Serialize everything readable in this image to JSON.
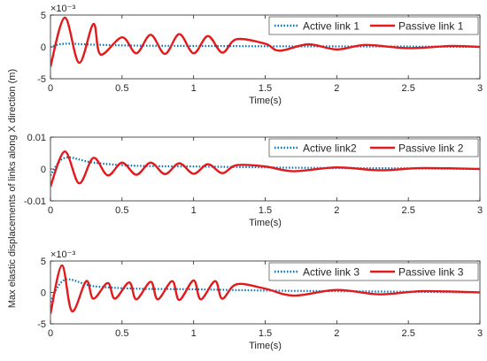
{
  "figure": {
    "shared_ylabel": "Max elastic displacements of links along X direction (m)"
  },
  "chart_data": [
    {
      "type": "line",
      "xlabel": "Time(s)",
      "ylabel": "",
      "xlim": [
        0,
        3
      ],
      "ylim": [
        -5,
        5
      ],
      "xticks": [
        0,
        0.5,
        1,
        1.5,
        2,
        2.5,
        3
      ],
      "xtick_labels": [
        "0",
        "0.5",
        "1",
        "1.5",
        "2",
        "2.5",
        "3"
      ],
      "yticks": [
        -5,
        0,
        5
      ],
      "ytick_labels": [
        "-5",
        "0",
        "5"
      ],
      "exponent_label": "×10⁻³",
      "grid": false,
      "legend_position": "top-right",
      "series": [
        {
          "name": "Active link 1",
          "color": "#0072bd",
          "style": "dotted",
          "x": [
            0,
            0.1,
            0.3,
            0.6,
            1.0,
            1.5,
            2.0,
            2.5,
            3.0
          ],
          "y": [
            0,
            0.5,
            0.35,
            0.2,
            0.15,
            0.1,
            0.08,
            0.05,
            0.0
          ]
        },
        {
          "name": "Passive link 1",
          "color": "#e31a1c",
          "style": "solid",
          "x": [
            0,
            0.1,
            0.2,
            0.3,
            0.35,
            0.5,
            0.6,
            0.7,
            0.8,
            0.9,
            1.0,
            1.1,
            1.2,
            1.3,
            1.5,
            1.6,
            1.8,
            2.0,
            2.2,
            2.5,
            2.8,
            3.0
          ],
          "y": [
            -3.1,
            4.6,
            -2.5,
            3.6,
            -1.2,
            1.5,
            -1.0,
            1.9,
            -1.1,
            2.0,
            -1.0,
            1.7,
            -0.9,
            1.2,
            0.5,
            -0.6,
            0.4,
            -0.4,
            0.3,
            -0.2,
            0.15,
            0.0
          ]
        }
      ]
    },
    {
      "type": "line",
      "xlabel": "Time(s)",
      "ylabel": "",
      "xlim": [
        0,
        3
      ],
      "ylim": [
        -0.01,
        0.01
      ],
      "xticks": [
        0,
        0.5,
        1,
        1.5,
        2,
        2.5,
        3
      ],
      "xtick_labels": [
        "0",
        "0.5",
        "1",
        "1.5",
        "2",
        "2.5",
        "3"
      ],
      "yticks": [
        -0.01,
        0,
        0.01
      ],
      "ytick_labels": [
        "-0.01",
        "0",
        "0.01"
      ],
      "exponent_label": "",
      "grid": false,
      "legend_position": "top-right",
      "series": [
        {
          "name": "Active link2",
          "color": "#0072bd",
          "style": "dotted",
          "x": [
            0,
            0.1,
            0.3,
            0.6,
            1.0,
            1.5,
            2.0,
            2.5,
            3.0
          ],
          "y": [
            -0.002,
            0.0035,
            0.002,
            0.001,
            0.0008,
            0.0005,
            0.0003,
            0.0002,
            0.0
          ]
        },
        {
          "name": "Passive link 2",
          "color": "#e31a1c",
          "style": "solid",
          "x": [
            0,
            0.1,
            0.2,
            0.3,
            0.4,
            0.5,
            0.6,
            0.7,
            0.8,
            0.9,
            1.0,
            1.1,
            1.2,
            1.3,
            1.5,
            1.7,
            2.0,
            2.3,
            2.6,
            3.0
          ],
          "y": [
            -0.0055,
            0.0055,
            -0.0045,
            0.0035,
            -0.002,
            0.002,
            -0.0018,
            0.002,
            -0.0016,
            0.0018,
            -0.0015,
            0.0015,
            -0.0013,
            0.0012,
            0.0008,
            -0.0007,
            0.0005,
            -0.0004,
            0.0003,
            0.0
          ]
        }
      ]
    },
    {
      "type": "line",
      "xlabel": "Time(s)",
      "ylabel": "",
      "xlim": [
        0,
        3
      ],
      "ylim": [
        -5,
        5
      ],
      "xticks": [
        0,
        0.5,
        1,
        1.5,
        2,
        2.5,
        3
      ],
      "xtick_labels": [
        "0",
        "0.5",
        "1",
        "1.5",
        "2",
        "2.5",
        "3"
      ],
      "yticks": [
        -5,
        0,
        5
      ],
      "ytick_labels": [
        "-5",
        "0",
        "5"
      ],
      "exponent_label": "×10⁻³",
      "grid": false,
      "legend_position": "top-right",
      "series": [
        {
          "name": "Active link 3",
          "color": "#0072bd",
          "style": "dotted",
          "x": [
            0,
            0.1,
            0.3,
            0.6,
            1.0,
            1.5,
            2.0,
            2.5,
            3.0
          ],
          "y": [
            -1.5,
            2.0,
            1.0,
            0.6,
            0.5,
            0.3,
            0.2,
            0.1,
            0.0
          ]
        },
        {
          "name": "Passive link 3",
          "color": "#e31a1c",
          "style": "solid",
          "x": [
            0,
            0.08,
            0.15,
            0.25,
            0.3,
            0.4,
            0.45,
            0.55,
            0.6,
            0.7,
            0.75,
            0.85,
            0.9,
            1.0,
            1.05,
            1.15,
            1.2,
            1.3,
            1.5,
            1.7,
            2.0,
            2.3,
            2.6,
            3.0
          ],
          "y": [
            -3.4,
            4.3,
            -3.0,
            1.8,
            -1.0,
            1.5,
            -1.0,
            1.6,
            -1.1,
            1.7,
            -1.1,
            1.8,
            -1.2,
            1.9,
            -1.1,
            1.8,
            -1.0,
            1.3,
            0.6,
            -0.5,
            0.4,
            -0.3,
            0.2,
            0.0
          ]
        }
      ]
    }
  ]
}
